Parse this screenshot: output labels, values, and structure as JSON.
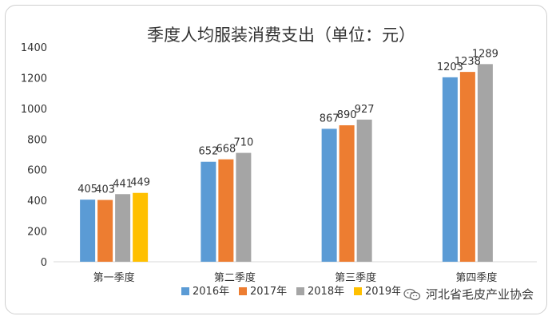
{
  "chart_data": {
    "type": "bar",
    "title": "季度人均服装消费支出（单位：元）",
    "categories": [
      "第一季度",
      "第二季度",
      "第三季度",
      "第四季度"
    ],
    "series": [
      {
        "name": "2016年",
        "color": "#5B9BD5",
        "values": [
          405,
          652,
          867,
          1203
        ]
      },
      {
        "name": "2017年",
        "color": "#ED7D31",
        "values": [
          403,
          668,
          890,
          1238
        ]
      },
      {
        "name": "2018年",
        "color": "#A5A5A5",
        "values": [
          441,
          710,
          927,
          1289
        ]
      },
      {
        "name": "2019年",
        "color": "#FFC000",
        "values": [
          449,
          null,
          null,
          null
        ]
      }
    ],
    "ylim": [
      0,
      1400
    ],
    "yticks": [
      0,
      200,
      400,
      600,
      800,
      1000,
      1200,
      1400
    ],
    "grid": false,
    "legend_position": "bottom",
    "xlabel": "",
    "ylabel": ""
  },
  "watermark": {
    "text": "河北省毛皮产业协会",
    "icon": "wechat-icon"
  }
}
